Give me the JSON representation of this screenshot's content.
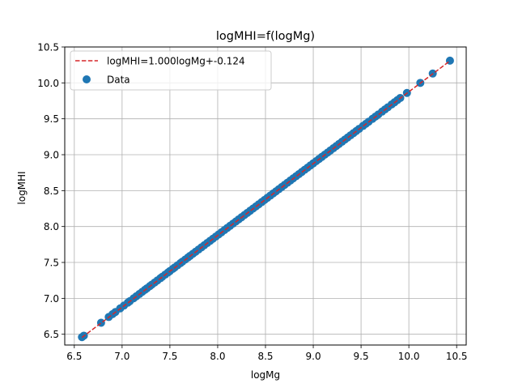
{
  "chart_data": {
    "type": "scatter",
    "title": "logMHI=f(logMg)",
    "xlabel": "logMg",
    "ylabel": "logMHI",
    "xlim": [
      6.4,
      10.6
    ],
    "ylim": [
      6.35,
      10.5
    ],
    "xticks": [
      6.5,
      7.0,
      7.5,
      8.0,
      8.5,
      9.0,
      9.5,
      10.0,
      10.5
    ],
    "xtick_labels": [
      "6.5",
      "7.0",
      "7.5",
      "8.0",
      "8.5",
      "9.0",
      "9.5",
      "10.0",
      "10.5"
    ],
    "yticks": [
      6.5,
      7.0,
      7.5,
      8.0,
      8.5,
      9.0,
      9.5,
      10.0,
      10.5
    ],
    "ytick_labels": [
      "6.5",
      "7.0",
      "7.5",
      "8.0",
      "8.5",
      "9.0",
      "9.5",
      "10.0",
      "10.5"
    ],
    "grid": true,
    "legend_position": "top-left",
    "fit": {
      "label": "logMHI=1.000logMg+-0.124",
      "slope": 1.0,
      "intercept": -0.124,
      "x_range": [
        6.58,
        10.43
      ],
      "color": "#d62728",
      "style": "dashed"
    },
    "series": [
      {
        "name": "Data",
        "color": "#1f77b4",
        "x": [
          6.58,
          6.6,
          6.78,
          6.86,
          6.9,
          6.93,
          6.98,
          7.02,
          7.06,
          7.08,
          7.12,
          7.15,
          7.18,
          7.21,
          7.24,
          7.26,
          7.29,
          7.31,
          7.34,
          7.37,
          7.4,
          7.42,
          7.45,
          7.48,
          7.5,
          7.53,
          7.55,
          7.58,
          7.61,
          7.63,
          7.66,
          7.69,
          7.71,
          7.74,
          7.77,
          7.8,
          7.83,
          7.86,
          7.89,
          7.92,
          7.95,
          7.98,
          8.01,
          8.04,
          8.07,
          8.1,
          8.13,
          8.16,
          8.19,
          8.22,
          8.25,
          8.28,
          8.31,
          8.34,
          8.37,
          8.4,
          8.43,
          8.46,
          8.49,
          8.52,
          8.55,
          8.58,
          8.61,
          8.64,
          8.67,
          8.7,
          8.73,
          8.76,
          8.79,
          8.82,
          8.85,
          8.88,
          8.91,
          8.94,
          8.97,
          9.0,
          9.03,
          9.06,
          9.09,
          9.12,
          9.15,
          9.18,
          9.21,
          9.24,
          9.27,
          9.3,
          9.33,
          9.36,
          9.39,
          9.42,
          9.45,
          9.48,
          9.52,
          9.55,
          9.58,
          9.62,
          9.65,
          9.68,
          9.72,
          9.75,
          9.78,
          9.82,
          9.85,
          9.88,
          9.91,
          9.98,
          10.12,
          10.25,
          10.43
        ],
        "y": [
          6.46,
          6.48,
          6.66,
          6.74,
          6.78,
          6.81,
          6.86,
          6.9,
          6.94,
          6.96,
          7.0,
          7.03,
          7.06,
          7.09,
          7.12,
          7.14,
          7.17,
          7.19,
          7.22,
          7.25,
          7.28,
          7.3,
          7.33,
          7.36,
          7.38,
          7.41,
          7.43,
          7.46,
          7.49,
          7.51,
          7.54,
          7.57,
          7.59,
          7.62,
          7.65,
          7.68,
          7.71,
          7.74,
          7.77,
          7.8,
          7.83,
          7.86,
          7.89,
          7.92,
          7.95,
          7.98,
          8.01,
          8.04,
          8.07,
          8.1,
          8.13,
          8.16,
          8.19,
          8.22,
          8.25,
          8.28,
          8.31,
          8.34,
          8.37,
          8.4,
          8.43,
          8.46,
          8.49,
          8.52,
          8.55,
          8.58,
          8.61,
          8.64,
          8.67,
          8.7,
          8.73,
          8.76,
          8.79,
          8.82,
          8.85,
          8.88,
          8.91,
          8.94,
          8.97,
          9.0,
          9.03,
          9.06,
          9.09,
          9.12,
          9.15,
          9.18,
          9.21,
          9.24,
          9.27,
          9.3,
          9.33,
          9.36,
          9.4,
          9.43,
          9.46,
          9.5,
          9.53,
          9.56,
          9.6,
          9.63,
          9.66,
          9.7,
          9.73,
          9.76,
          9.79,
          9.86,
          10.0,
          10.13,
          10.31
        ]
      }
    ]
  }
}
